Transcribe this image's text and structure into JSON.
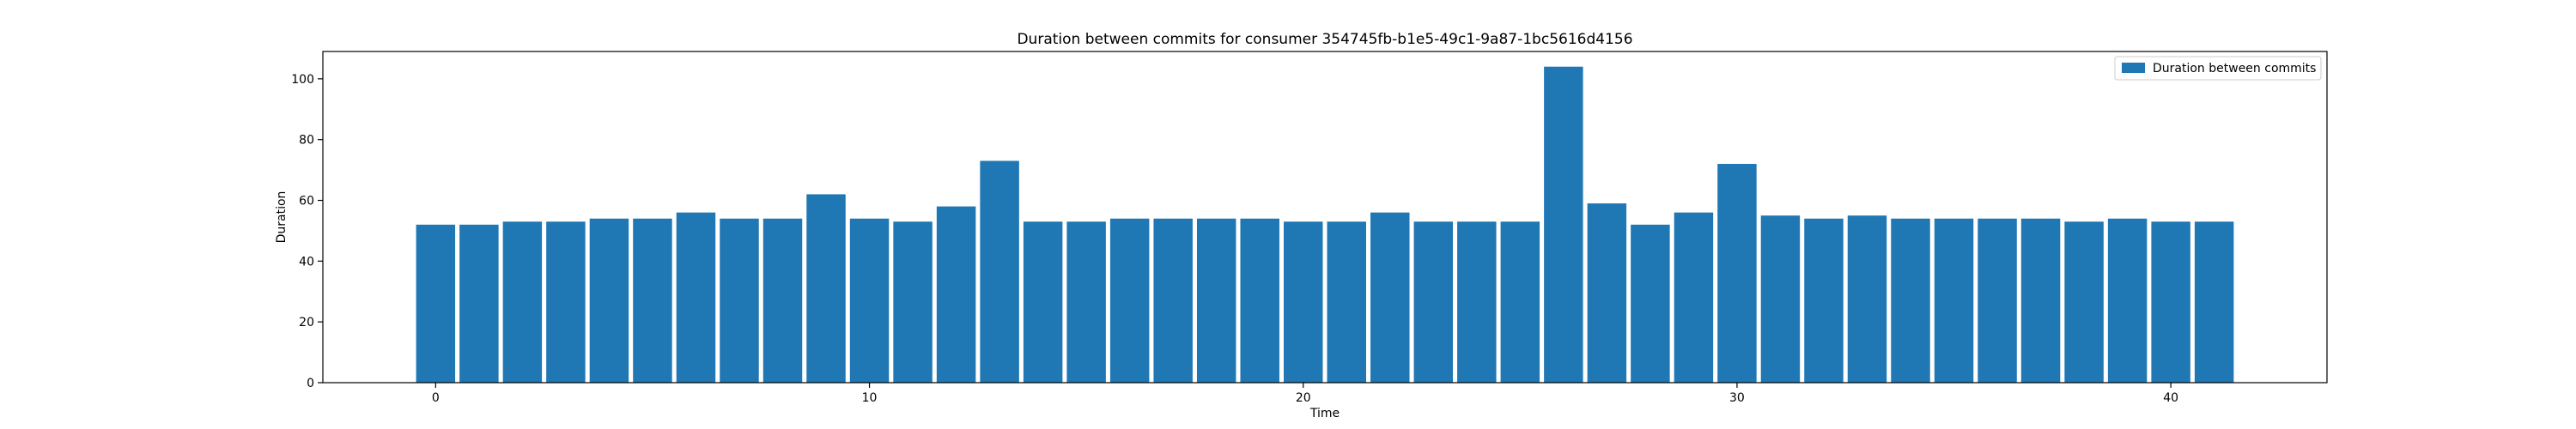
{
  "chart_data": {
    "type": "bar",
    "title": "Duration between commits for consumer 354745fb-b1e5-49c1-9a87-1bc5616d4156",
    "xlabel": "Time",
    "ylabel": "Duration",
    "xlim": [
      -2.6,
      43.6
    ],
    "ylim": [
      0,
      109
    ],
    "x_ticks": [
      0,
      10,
      20,
      30,
      40
    ],
    "y_ticks": [
      0,
      20,
      40,
      60,
      80,
      100
    ],
    "grid": false,
    "legend_position": "top-right",
    "bar_width": 0.9,
    "series": [
      {
        "name": "Duration between commits",
        "color": "#1f77b4",
        "x": [
          0,
          1,
          2,
          3,
          4,
          5,
          6,
          7,
          8,
          9,
          10,
          11,
          12,
          13,
          14,
          15,
          16,
          17,
          18,
          19,
          20,
          21,
          22,
          23,
          24,
          25,
          26,
          27,
          28,
          29,
          30,
          31,
          32,
          33,
          34,
          35,
          36,
          37,
          38,
          39,
          40,
          41
        ],
        "values": [
          52,
          52,
          53,
          53,
          54,
          54,
          56,
          54,
          54,
          62,
          54,
          53,
          58,
          73,
          53,
          53,
          54,
          54,
          54,
          54,
          53,
          53,
          56,
          53,
          53,
          53,
          104,
          59,
          52,
          56,
          72,
          55,
          54,
          55,
          54,
          54,
          54,
          54,
          53,
          54,
          53,
          53
        ]
      }
    ]
  }
}
